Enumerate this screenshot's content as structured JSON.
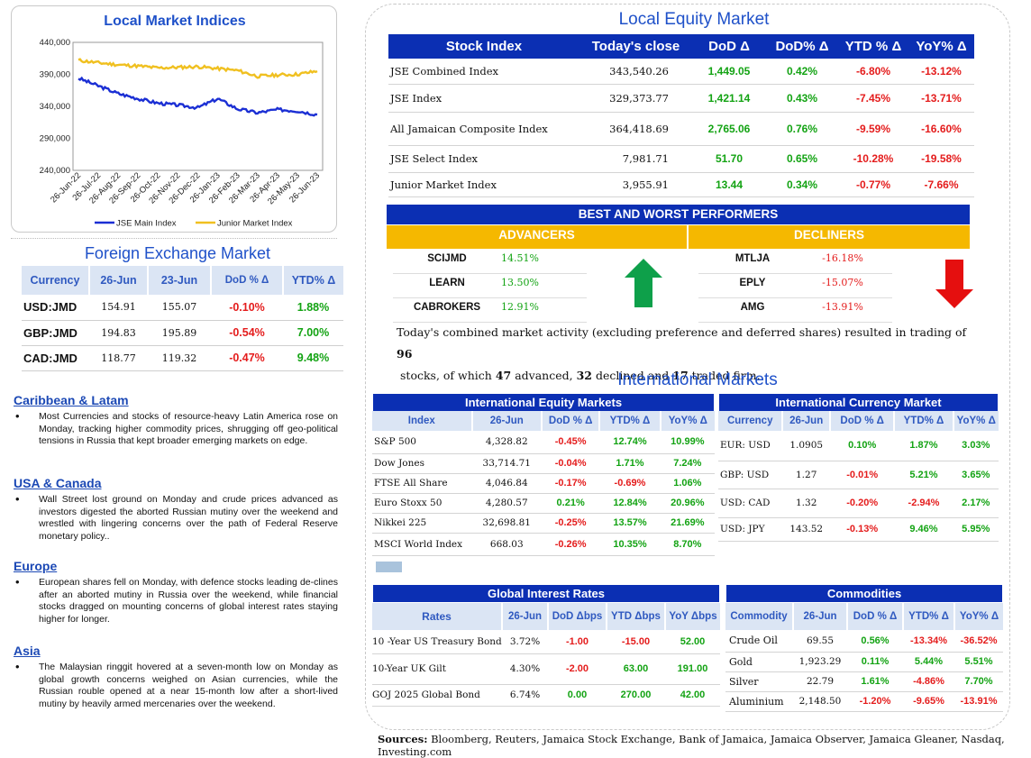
{
  "indices_chart": {
    "title": "Local Market Indices",
    "chart_data": {
      "type": "line",
      "title": "Local Market Indices",
      "ylim": [
        240000,
        440000
      ],
      "yticks": [
        "440,000",
        "390,000",
        "340,000",
        "290,000",
        "240,000"
      ],
      "xticks": [
        "26-Jun-22",
        "26-Jul-22",
        "26-Aug-22",
        "26-Sep-22",
        "26-Oct-22",
        "26-Nov-22",
        "26-Dec-22",
        "26-Jan-23",
        "26-Feb-23",
        "26-Mar-23",
        "26-Apr-23",
        "26-May-23",
        "26-Jun-23"
      ],
      "series": [
        {
          "name": "JSE Main Index",
          "color": "#1b2fd4",
          "values": [
            384000,
            372000,
            360000,
            352000,
            345000,
            342000,
            338000,
            352000,
            336000,
            330000,
            335000,
            333000,
            327000
          ]
        },
        {
          "name": "Junior Market Index",
          "color": "#f0c020",
          "values": [
            412000,
            408000,
            405000,
            403000,
            400000,
            401000,
            402000,
            399000,
            396000,
            387000,
            389000,
            390000,
            395000
          ]
        }
      ]
    }
  },
  "fx": {
    "title": "Foreign Exchange Market",
    "headers": [
      "Currency",
      "26-Jun",
      "23-Jun",
      "DoD % Δ",
      "YTD% Δ"
    ],
    "rows": [
      {
        "cur": "USD:JMD",
        "a": "154.91",
        "b": "155.07",
        "dod": "-0.10%",
        "ytd": "1.88%"
      },
      {
        "cur": "GBP:JMD",
        "a": "194.83",
        "b": "195.89",
        "dod": "-0.54%",
        "ytd": "7.00%"
      },
      {
        "cur": "CAD:JMD",
        "a": "118.77",
        "b": "119.32",
        "dod": "-0.47%",
        "ytd": "9.48%"
      }
    ]
  },
  "news": [
    {
      "title": "Caribbean & Latam",
      "text": "Most Currencies and stocks of resource-heavy Latin America rose on Monday, tracking higher commodity prices, shrugging off geo-political tensions in Russia that kept broader emerging markets on edge."
    },
    {
      "title": "USA & Canada",
      "text": "Wall Street lost ground on Monday and crude prices advanced as investors digested the aborted Russian mutiny over the weekend and wrestled with lingering concerns over the path of Federal Reserve monetary policy.."
    },
    {
      "title": "Europe",
      "text": "European shares fell on Monday, with defence stocks leading de-clines after an aborted mutiny in Russia over the weekend, while financial stocks dragged on mounting concerns of global interest rates staying higher for longer."
    },
    {
      "title": "Asia",
      "text": "The Malaysian ringgit hovered at a seven-month low on Monday as global growth concerns weighed on Asian currencies, while the Russian rouble opened at a near 15-month low after a short-lived mutiny by heavily armed mercenaries over the weekend."
    }
  ],
  "equity": {
    "title": "Local Equity Market",
    "headers": [
      "Stock Index",
      "Today's close",
      "DoD  Δ",
      "DoD% Δ",
      "YTD % Δ",
      "YoY% Δ"
    ],
    "rows": [
      {
        "name": "JSE Combined Index",
        "close": "343,540.26",
        "dod": "1,449.05",
        "dodp": "0.42%",
        "ytd": "-6.80%",
        "yoy": "-13.12%"
      },
      {
        "name": "JSE Index",
        "close": "329,373.77",
        "dod": "1,421.14",
        "dodp": "0.43%",
        "ytd": "-7.45%",
        "yoy": "-13.71%"
      },
      {
        "name": "All Jamaican Composite Index",
        "close": "364,418.69",
        "dod": "2,765.06",
        "dodp": "0.76%",
        "ytd": "-9.59%",
        "yoy": "-16.60%"
      },
      {
        "name": "JSE Select Index",
        "close": "7,981.71",
        "dod": "51.70",
        "dodp": "0.65%",
        "ytd": "-10.28%",
        "yoy": "-19.58%"
      },
      {
        "name": "Junior Market Index",
        "close": "3,955.91",
        "dod": "13.44",
        "dodp": "0.34%",
        "ytd": "-0.77%",
        "yoy": "-7.66%"
      }
    ]
  },
  "performers": {
    "title": "BEST AND WORST PERFORMERS",
    "adv_label": "ADVANCERS",
    "dec_label": "DECLINERS",
    "advancers": [
      {
        "sym": "SCIJMD",
        "pct": "14.51%"
      },
      {
        "sym": "LEARN",
        "pct": "13.50%"
      },
      {
        "sym": "CABROKERS",
        "pct": "12.91%"
      }
    ],
    "decliners": [
      {
        "sym": "MTLJA",
        "pct": "-16.18%"
      },
      {
        "sym": "EPLY",
        "pct": "-15.07%"
      },
      {
        "sym": "AMG",
        "pct": "-13.91%"
      }
    ]
  },
  "summary": {
    "p1": "Today's combined market activity (excluding preference and deferred shares) resulted in trading of ",
    "n1": "96",
    "p2": "stocks, of which ",
    "n2": "47",
    "p3": " advanced, ",
    "n3": "32",
    "p4": " declined and ",
    "n4": "17",
    "p5": " traded firm."
  },
  "intl_title": "International Markets",
  "intl_equity": {
    "title": "International Equity Markets",
    "headers": [
      "Index",
      "26-Jun",
      "DoD % Δ",
      "YTD% Δ",
      "YoY% Δ"
    ],
    "rows": [
      {
        "name": "S&P 500",
        "v": "4,328.82",
        "dod": "-0.45%",
        "ytd": "12.74%",
        "yoy": "10.99%"
      },
      {
        "name": "Dow Jones",
        "v": "33,714.71",
        "dod": "-0.04%",
        "ytd": "1.71%",
        "yoy": "7.24%"
      },
      {
        "name": "FTSE All Share",
        "v": "4,046.84",
        "dod": "-0.17%",
        "ytd": "-0.69%",
        "yoy": "1.06%"
      },
      {
        "name": "Euro Stoxx 50",
        "v": "4,280.57",
        "dod": "0.21%",
        "ytd": "12.84%",
        "yoy": "20.96%"
      },
      {
        "name": "Nikkei 225",
        "v": "32,698.81",
        "dod": "-0.25%",
        "ytd": "13.57%",
        "yoy": "21.69%"
      },
      {
        "name": "MSCI World Index",
        "v": "668.03",
        "dod": "-0.26%",
        "ytd": "10.35%",
        "yoy": "8.70%"
      }
    ]
  },
  "intl_fx": {
    "title": "International Currency Market",
    "headers": [
      "Currency",
      "26-Jun",
      "DoD % Δ",
      "YTD% Δ",
      "YoY% Δ"
    ],
    "rows": [
      {
        "name": "EUR: USD",
        "v": "1.0905",
        "dod": "0.10%",
        "ytd": "1.87%",
        "yoy": "3.03%"
      },
      {
        "name": "GBP: USD",
        "v": "1.27",
        "dod": "-0.01%",
        "ytd": "5.21%",
        "yoy": "3.65%"
      },
      {
        "name": "USD: CAD",
        "v": "1.32",
        "dod": "-0.20%",
        "ytd": "-2.94%",
        "yoy": "2.17%"
      },
      {
        "name": "USD: JPY",
        "v": "143.52",
        "dod": "-0.13%",
        "ytd": "9.46%",
        "yoy": "5.95%"
      }
    ]
  },
  "rates": {
    "title": "Global Interest Rates",
    "headers": [
      "Rates",
      "26-Jun",
      "DoD Δbps",
      "YTD Δbps",
      "YoY Δbps"
    ],
    "rows": [
      {
        "name": "10 -Year US Treasury Bond",
        "v": "3.72%",
        "dod": "-1.00",
        "ytd": "-15.00",
        "yoy": "52.00"
      },
      {
        "name": "10-Year UK Gilt",
        "v": "4.30%",
        "dod": "-2.00",
        "ytd": "63.00",
        "yoy": "191.00"
      },
      {
        "name": "GOJ 2025 Global Bond",
        "v": "6.74%",
        "dod": "0.00",
        "ytd": "270.00",
        "yoy": "42.00"
      }
    ]
  },
  "commodities": {
    "title": "Commodities",
    "headers": [
      "Commodity",
      "26-Jun",
      "DoD % Δ",
      "YTD% Δ",
      "YoY% Δ"
    ],
    "rows": [
      {
        "name": "Crude Oil",
        "v": "69.55",
        "dod": "0.56%",
        "ytd": "-13.34%",
        "yoy": "-36.52%"
      },
      {
        "name": "Gold",
        "v": "1,923.29",
        "dod": "0.11%",
        "ytd": "5.44%",
        "yoy": "5.51%"
      },
      {
        "name": "Silver",
        "v": "22.79",
        "dod": "1.61%",
        "ytd": "-4.86%",
        "yoy": "7.70%"
      },
      {
        "name": "Aluminium",
        "v": "2,148.50",
        "dod": "-1.20%",
        "ytd": "-9.65%",
        "yoy": "-13.91%"
      }
    ]
  },
  "sources": {
    "label": "Sources:",
    "text": " Bloomberg, Reuters, Jamaica Stock Exchange, Bank of Jamaica, Jamaica Observer, Jamaica Gleaner, Nasdaq, Investing.com"
  },
  "colors": {
    "header_blue": "#0b2fb3",
    "gold": "#f5b800",
    "positive": "#13a313",
    "negative": "#e41c1c"
  }
}
